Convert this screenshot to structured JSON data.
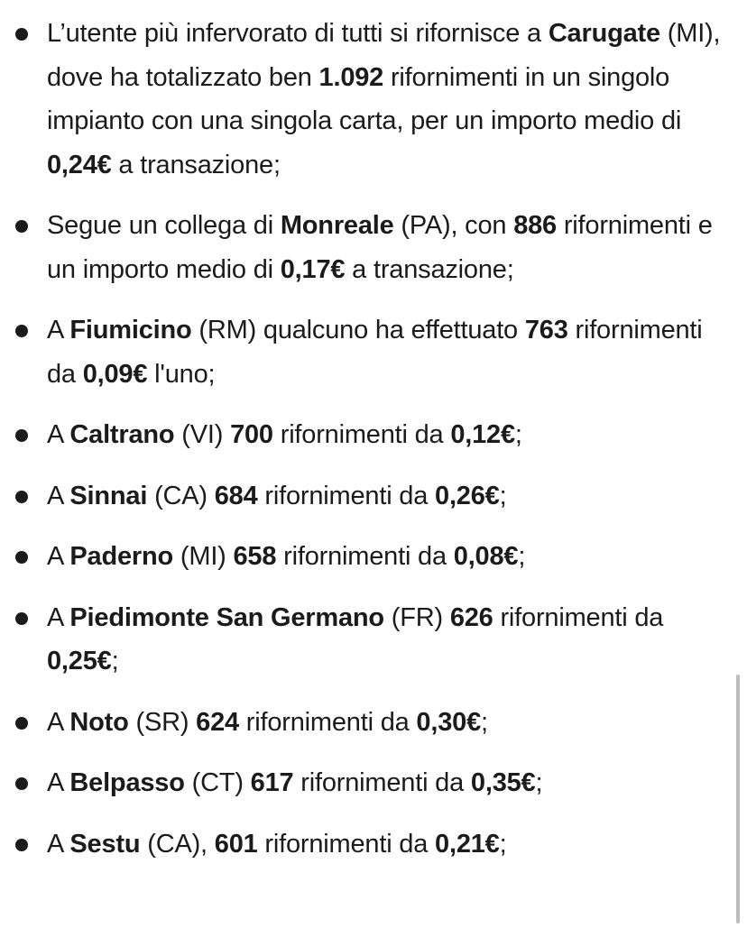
{
  "items": [
    {
      "segments": [
        {
          "text": "L’utente più infervorato di tutti si rifornisce a ",
          "bold": false
        },
        {
          "text": "Carugate",
          "bold": true
        },
        {
          "text": " (MI), dove ha totalizzato ben ",
          "bold": false
        },
        {
          "text": "1.092",
          "bold": true
        },
        {
          "text": " rifornimenti in un singolo impianto con una singola carta, per un importo medio di ",
          "bold": false
        },
        {
          "text": "0,24€",
          "bold": true
        },
        {
          "text": " a transazione;",
          "bold": false
        }
      ]
    },
    {
      "segments": [
        {
          "text": "Segue un collega di ",
          "bold": false
        },
        {
          "text": "Monreale",
          "bold": true
        },
        {
          "text": " (PA), con ",
          "bold": false
        },
        {
          "text": "886",
          "bold": true
        },
        {
          "text": " rifornimenti e un importo medio di ",
          "bold": false
        },
        {
          "text": "0,17€",
          "bold": true
        },
        {
          "text": " a transazione;",
          "bold": false
        }
      ]
    },
    {
      "segments": [
        {
          "text": "A ",
          "bold": false
        },
        {
          "text": "Fiumicino",
          "bold": true
        },
        {
          "text": " (RM) qualcuno ha effettuato ",
          "bold": false
        },
        {
          "text": "763",
          "bold": true
        },
        {
          "text": " rifornimenti da ",
          "bold": false
        },
        {
          "text": "0,09€",
          "bold": true
        },
        {
          "text": " l'uno;",
          "bold": false
        }
      ]
    },
    {
      "segments": [
        {
          "text": "A ",
          "bold": false
        },
        {
          "text": "Caltrano",
          "bold": true
        },
        {
          "text": " (VI) ",
          "bold": false
        },
        {
          "text": "700",
          "bold": true
        },
        {
          "text": " rifornimenti da ",
          "bold": false
        },
        {
          "text": "0,12€",
          "bold": true
        },
        {
          "text": ";",
          "bold": false
        }
      ]
    },
    {
      "segments": [
        {
          "text": "A ",
          "bold": false
        },
        {
          "text": "Sinnai",
          "bold": true
        },
        {
          "text": " (CA) ",
          "bold": false
        },
        {
          "text": "684",
          "bold": true
        },
        {
          "text": " rifornimenti da ",
          "bold": false
        },
        {
          "text": "0,26€",
          "bold": true
        },
        {
          "text": ";",
          "bold": false
        }
      ]
    },
    {
      "segments": [
        {
          "text": "A ",
          "bold": false
        },
        {
          "text": "Paderno",
          "bold": true
        },
        {
          "text": " (MI) ",
          "bold": false
        },
        {
          "text": "658",
          "bold": true
        },
        {
          "text": " rifornimenti da ",
          "bold": false
        },
        {
          "text": "0,08€",
          "bold": true
        },
        {
          "text": ";",
          "bold": false
        }
      ]
    },
    {
      "segments": [
        {
          "text": "A ",
          "bold": false
        },
        {
          "text": "Piedimonte San Germano",
          "bold": true
        },
        {
          "text": " (FR) ",
          "bold": false
        },
        {
          "text": "626",
          "bold": true
        },
        {
          "text": " rifornimenti da ",
          "bold": false
        },
        {
          "text": "0,25€",
          "bold": true
        },
        {
          "text": ";",
          "bold": false
        }
      ]
    },
    {
      "segments": [
        {
          "text": "A ",
          "bold": false
        },
        {
          "text": "Noto",
          "bold": true
        },
        {
          "text": " (SR) ",
          "bold": false
        },
        {
          "text": "624",
          "bold": true
        },
        {
          "text": " rifornimenti da ",
          "bold": false
        },
        {
          "text": "0,30€",
          "bold": true
        },
        {
          "text": ";",
          "bold": false
        }
      ]
    },
    {
      "segments": [
        {
          "text": "A ",
          "bold": false
        },
        {
          "text": "Belpasso",
          "bold": true
        },
        {
          "text": " (CT) ",
          "bold": false
        },
        {
          "text": "617",
          "bold": true
        },
        {
          "text": " rifornimenti da ",
          "bold": false
        },
        {
          "text": "0,35€",
          "bold": true
        },
        {
          "text": ";",
          "bold": false
        }
      ]
    },
    {
      "segments": [
        {
          "text": "A ",
          "bold": false
        },
        {
          "text": "Sestu",
          "bold": true
        },
        {
          "text": " (CA), ",
          "bold": false
        },
        {
          "text": "601",
          "bold": true
        },
        {
          "text": " rifornimenti da ",
          "bold": false
        },
        {
          "text": "0,21€",
          "bold": true
        },
        {
          "text": ";",
          "bold": false
        }
      ]
    }
  ]
}
